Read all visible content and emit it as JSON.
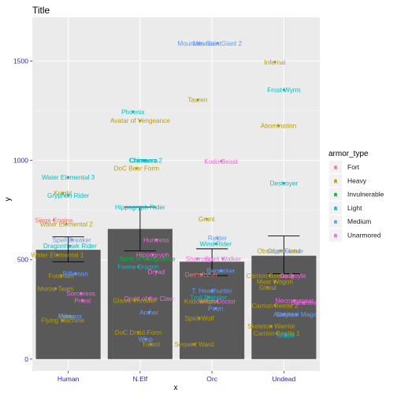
{
  "chart_data": {
    "type": "bar",
    "title": "Title",
    "xlabel": "x",
    "ylabel": "y",
    "ylim": [
      -60,
      1720
    ],
    "y_ticks": [
      0,
      500,
      1000,
      1500
    ],
    "categories": [
      "Human",
      "N.Elf",
      "Orc",
      "Undead"
    ],
    "bars": [
      {
        "category": "Human",
        "value": 550,
        "err_low": 490,
        "err_high": 615
      },
      {
        "category": "N.Elf",
        "value": 655,
        "err_low": 545,
        "err_high": 765
      },
      {
        "category": "Orc",
        "value": 490,
        "err_low": 420,
        "err_high": 555
      },
      {
        "category": "Undead",
        "value": 520,
        "err_low": 430,
        "err_high": 620
      }
    ],
    "legend": {
      "title": "armor_type",
      "placement": "right",
      "entries": [
        {
          "name": "Fort",
          "color": "#F8766D"
        },
        {
          "name": "Heavy",
          "color": "#B79F00"
        },
        {
          "name": "Invulnerable",
          "color": "#00BA38"
        },
        {
          "name": "Light",
          "color": "#00BFC4"
        },
        {
          "name": "Medium",
          "color": "#619CFF"
        },
        {
          "name": "Unarmored",
          "color": "#F564E3"
        }
      ]
    },
    "points": [
      {
        "cat": "Human",
        "dx": 0.0,
        "y": 915,
        "label": "Water Elemental 3",
        "armor": "Light"
      },
      {
        "cat": "Human",
        "dx": -0.15,
        "y": 835,
        "label": "Knight",
        "armor": "Heavy"
      },
      {
        "cat": "Human",
        "dx": 0.0,
        "y": 825,
        "label": "Gryphon Rider",
        "armor": "Light"
      },
      {
        "cat": "Human",
        "dx": -0.4,
        "y": 700,
        "label": "Siege Engine",
        "armor": "Fort"
      },
      {
        "cat": "Human",
        "dx": -0.05,
        "y": 680,
        "label": "Water Elemental 2",
        "armor": "Heavy"
      },
      {
        "cat": "Human",
        "dx": 0.1,
        "y": 600,
        "label": "Spell Breaker",
        "armor": "Medium"
      },
      {
        "cat": "Human",
        "dx": 0.05,
        "y": 570,
        "label": "Dragonhawk Rider",
        "armor": "Light"
      },
      {
        "cat": "Human",
        "dx": -0.3,
        "y": 525,
        "label": "Water Elemental 1",
        "armor": "Heavy"
      },
      {
        "cat": "Human",
        "dx": -0.2,
        "y": 420,
        "label": "Footman",
        "armor": "Heavy"
      },
      {
        "cat": "Human",
        "dx": 0.2,
        "y": 430,
        "label": "Rifleman",
        "armor": "Medium"
      },
      {
        "cat": "Human",
        "dx": -0.35,
        "y": 355,
        "label": "Mortar Team",
        "armor": "Heavy"
      },
      {
        "cat": "Human",
        "dx": 0.35,
        "y": 330,
        "label": "Sorceress",
        "armor": "Unarmored"
      },
      {
        "cat": "Human",
        "dx": 0.4,
        "y": 295,
        "label": "Priest",
        "armor": "Unarmored"
      },
      {
        "cat": "Human",
        "dx": -0.05,
        "y": 215,
        "label": "Militia",
        "armor": "Heavy"
      },
      {
        "cat": "Human",
        "dx": 0.05,
        "y": 215,
        "label": "Peasant",
        "armor": "Medium"
      },
      {
        "cat": "Human",
        "dx": -0.15,
        "y": 195,
        "label": "Flying Machine",
        "armor": "Heavy"
      },
      {
        "cat": "N.Elf",
        "dx": 0.0,
        "y": 1200,
        "label": "Avatar of Vengeance",
        "armor": "Heavy"
      },
      {
        "cat": "N.Elf",
        "dx": -0.2,
        "y": 1245,
        "label": "Phoenix",
        "armor": "Light"
      },
      {
        "cat": "N.Elf",
        "dx": 0.1,
        "y": 1000,
        "label": "Chimaera",
        "armor": "Light"
      },
      {
        "cat": "N.Elf",
        "dx": 0.15,
        "y": 1000,
        "label": "Chimaera 2",
        "armor": "Light"
      },
      {
        "cat": "N.Elf",
        "dx": -0.1,
        "y": 960,
        "label": "DoC Bear Form",
        "armor": "Heavy"
      },
      {
        "cat": "N.Elf",
        "dx": 0.0,
        "y": 765,
        "label": "Hippogryph Rider",
        "armor": "Light"
      },
      {
        "cat": "N.Elf",
        "dx": 0.45,
        "y": 600,
        "label": "Huntress",
        "armor": "Unarmored"
      },
      {
        "cat": "N.Elf",
        "dx": 0.35,
        "y": 525,
        "label": "Hippogryph",
        "armor": "Unarmored"
      },
      {
        "cat": "N.Elf",
        "dx": 0.2,
        "y": 505,
        "label": "Spirit of Vengeance",
        "armor": "Invulnerable"
      },
      {
        "cat": "N.Elf",
        "dx": -0.05,
        "y": 465,
        "label": "Faerie Dragon",
        "armor": "Light"
      },
      {
        "cat": "N.Elf",
        "dx": 0.45,
        "y": 440,
        "label": "Dryad",
        "armor": "Unarmored"
      },
      {
        "cat": "N.Elf",
        "dx": 0.25,
        "y": 305,
        "label": "Druid of the Claw",
        "armor": "Unarmored"
      },
      {
        "cat": "N.Elf",
        "dx": -0.15,
        "y": 295,
        "label": "Glaive Thrower",
        "armor": "Heavy"
      },
      {
        "cat": "N.Elf",
        "dx": 0.25,
        "y": 235,
        "label": "Archer",
        "armor": "Medium"
      },
      {
        "cat": "N.Elf",
        "dx": -0.05,
        "y": 135,
        "label": "DoC Druid Form",
        "armor": "Heavy"
      },
      {
        "cat": "N.Elf",
        "dx": 0.15,
        "y": 100,
        "label": "Wisp",
        "armor": "Medium"
      },
      {
        "cat": "N.Elf",
        "dx": 0.3,
        "y": 75,
        "label": "Treant",
        "armor": "Heavy"
      },
      {
        "cat": "Orc",
        "dx": -0.35,
        "y": 1590,
        "label": "Mountain Giant",
        "armor": "Medium"
      },
      {
        "cat": "Orc",
        "dx": -0.4,
        "y": 1305,
        "label": "Tauren",
        "armor": "Heavy"
      },
      {
        "cat": "Orc",
        "dx": 0.25,
        "y": 995,
        "label": "Kodo Beast",
        "armor": "Unarmored"
      },
      {
        "cat": "Orc",
        "dx": -0.15,
        "y": 705,
        "label": "Grunt",
        "armor": "Heavy"
      },
      {
        "cat": "Orc",
        "dx": 0.15,
        "y": 610,
        "label": "Raider",
        "armor": "Medium"
      },
      {
        "cat": "Orc",
        "dx": 0.1,
        "y": 580,
        "label": "Wind Rider",
        "armor": "Light"
      },
      {
        "cat": "Orc",
        "dx": 0.3,
        "y": 505,
        "label": "Spirit Walker",
        "armor": "Unarmored"
      },
      {
        "cat": "Orc",
        "dx": -0.4,
        "y": 505,
        "label": "Shaman",
        "armor": "Unarmored"
      },
      {
        "cat": "Orc",
        "dx": -0.3,
        "y": 425,
        "label": "Demolisher",
        "armor": "Fort"
      },
      {
        "cat": "Orc",
        "dx": 0.25,
        "y": 445,
        "label": "Berserker",
        "armor": "Medium"
      },
      {
        "cat": "Orc",
        "dx": 0.0,
        "y": 345,
        "label": "T. Headhunter",
        "armor": "Medium"
      },
      {
        "cat": "Orc",
        "dx": -0.1,
        "y": 310,
        "label": "Troll Batrider",
        "armor": "Light"
      },
      {
        "cat": "Orc",
        "dx": 0.15,
        "y": 290,
        "label": "Witch Doctor",
        "armor": "Unarmored"
      },
      {
        "cat": "Orc",
        "dx": -0.3,
        "y": 290,
        "label": "Kodo Worm",
        "armor": "Heavy"
      },
      {
        "cat": "Orc",
        "dx": 0.1,
        "y": 255,
        "label": "Peon",
        "armor": "Medium"
      },
      {
        "cat": "Orc",
        "dx": -0.35,
        "y": 205,
        "label": "Spirit Wolf",
        "armor": "Heavy"
      },
      {
        "cat": "Orc",
        "dx": -0.5,
        "y": 75,
        "label": "Serpent Ward",
        "armor": "Heavy"
      },
      {
        "cat": "Orc",
        "dx": 0.15,
        "y": 1590,
        "label": "Mountain Giant 2",
        "armor": "Medium"
      },
      {
        "cat": "Undead",
        "dx": -0.25,
        "y": 1495,
        "label": "Infernal",
        "armor": "Heavy"
      },
      {
        "cat": "Undead",
        "dx": 0.0,
        "y": 1355,
        "label": "Frost Wyrm",
        "armor": "Light"
      },
      {
        "cat": "Undead",
        "dx": -0.15,
        "y": 1175,
        "label": "Abomination",
        "armor": "Heavy"
      },
      {
        "cat": "Undead",
        "dx": 0.0,
        "y": 885,
        "label": "Destroyer",
        "armor": "Light"
      },
      {
        "cat": "Undead",
        "dx": -0.1,
        "y": 545,
        "label": "Obsidian Statue",
        "armor": "Heavy"
      },
      {
        "cat": "Undead",
        "dx": 0.0,
        "y": 545,
        "label": "Crypt Fiend",
        "armor": "Medium"
      },
      {
        "cat": "Undead",
        "dx": -0.25,
        "y": 390,
        "label": "Meat Wagon",
        "armor": "Heavy"
      },
      {
        "cat": "Undead",
        "dx": -0.45,
        "y": 360,
        "label": "Ghoul",
        "armor": "Heavy"
      },
      {
        "cat": "Undead",
        "dx": -0.4,
        "y": 420,
        "label": "Carrion Beetle 3",
        "armor": "Heavy"
      },
      {
        "cat": "Undead",
        "dx": 0.25,
        "y": 420,
        "label": "Gargoyle",
        "armor": "Unarmored"
      },
      {
        "cat": "Undead",
        "dx": 0.3,
        "y": 295,
        "label": "Necromancer",
        "armor": "Unarmored"
      },
      {
        "cat": "Undead",
        "dx": 0.55,
        "y": 285,
        "label": "Banshee",
        "armor": "Unarmored"
      },
      {
        "cat": "Undead",
        "dx": -0.25,
        "y": 270,
        "label": "Carrion Beetle 2",
        "armor": "Heavy"
      },
      {
        "cat": "Undead",
        "dx": 0.35,
        "y": 225,
        "label": "Skeletal Mage",
        "armor": "Medium"
      },
      {
        "cat": "Undead",
        "dx": 0.0,
        "y": 225,
        "label": "Acolyte",
        "armor": "Medium"
      },
      {
        "cat": "Undead",
        "dx": -0.35,
        "y": 165,
        "label": "Skeleton Warrior",
        "armor": "Heavy"
      },
      {
        "cat": "Undead",
        "dx": -0.2,
        "y": 130,
        "label": "Carrion Beetle 1",
        "armor": "Heavy"
      },
      {
        "cat": "Undead",
        "dx": 0.05,
        "y": 120,
        "label": "Shade",
        "armor": "Light"
      }
    ]
  }
}
